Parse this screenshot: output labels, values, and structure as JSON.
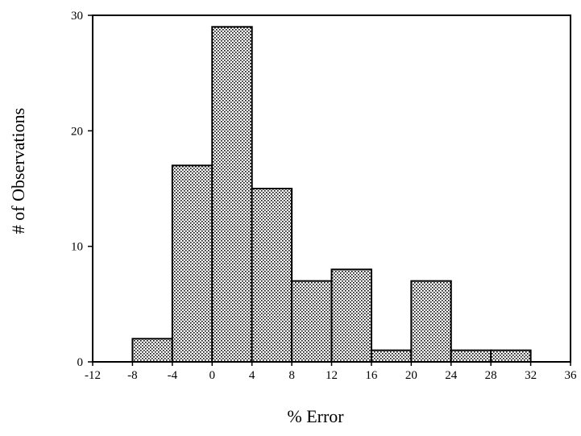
{
  "chart_data": {
    "type": "bar",
    "title": "",
    "xlabel": "% Error",
    "ylabel": "# of Observations",
    "xlim": [
      -12,
      36
    ],
    "ylim": [
      0,
      30
    ],
    "x_ticks": [
      -12,
      -8,
      -4,
      0,
      4,
      8,
      12,
      16,
      20,
      24,
      28,
      32,
      36
    ],
    "y_ticks": [
      0,
      10,
      20,
      30
    ],
    "bins": [
      {
        "from": -8,
        "to": -4,
        "count": 2
      },
      {
        "from": -4,
        "to": 0,
        "count": 17
      },
      {
        "from": 0,
        "to": 4,
        "count": 29
      },
      {
        "from": 4,
        "to": 8,
        "count": 15
      },
      {
        "from": 8,
        "to": 12,
        "count": 7
      },
      {
        "from": 12,
        "to": 16,
        "count": 8
      },
      {
        "from": 16,
        "to": 20,
        "count": 1
      },
      {
        "from": 20,
        "to": 24,
        "count": 7
      },
      {
        "from": 24,
        "to": 28,
        "count": 1
      },
      {
        "from": 28,
        "to": 32,
        "count": 1
      }
    ],
    "fill_pattern": "stippled",
    "grid": false,
    "legend": "none"
  }
}
